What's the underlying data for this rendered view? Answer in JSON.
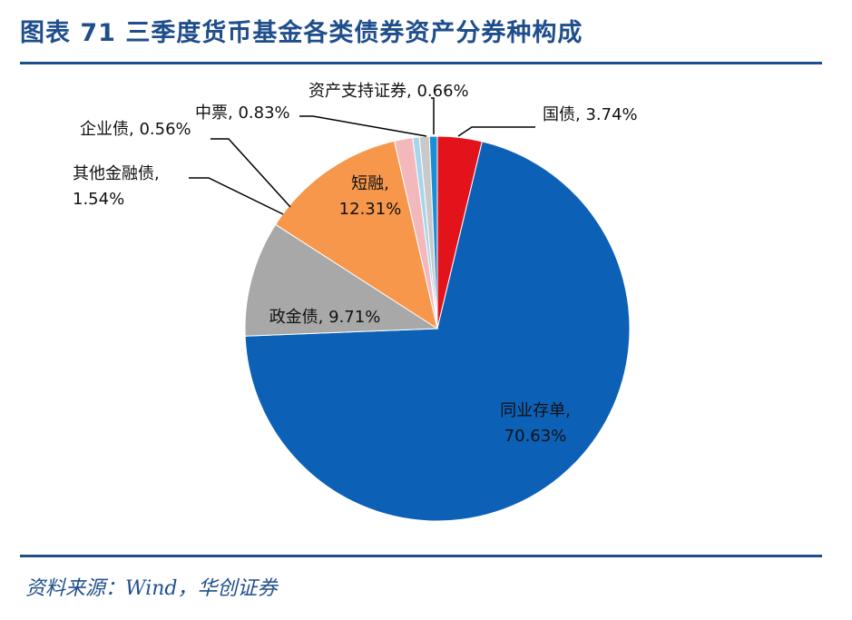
{
  "title": "图表 71  三季度货币基金各类债券资产分券种构成",
  "source": "资料来源：Wind，华创证券",
  "chart_data": {
    "type": "pie",
    "title": "图表 71  三季度货币基金各类债券资产分券种构成",
    "start": "12 o'clock, clockwise",
    "slices": [
      {
        "name": "国债",
        "value": 3.74,
        "label": "国债, 3.74%",
        "color": "#e3131b"
      },
      {
        "name": "同业存单",
        "value": 70.63,
        "label": "同业存单,\n70.63%",
        "color": "#0c61b7"
      },
      {
        "name": "政金债",
        "value": 9.71,
        "label": "政金债, 9.71%",
        "color": "#a8a8a8"
      },
      {
        "name": "短融",
        "value": 12.31,
        "label": "短融,\n12.31%",
        "color": "#f7974b"
      },
      {
        "name": "其他金融债",
        "value": 1.54,
        "label": "其他金融债,\n1.54%",
        "color": "#f2b8bc"
      },
      {
        "name": "企业债",
        "value": 0.56,
        "label": "企业债, 0.56%",
        "color": "#a7d6ec"
      },
      {
        "name": "中票",
        "value": 0.83,
        "label": "中票, 0.83%",
        "color": "#c9c9c9"
      },
      {
        "name": "资产支持证券",
        "value": 0.66,
        "label": "资产支持证券, 0.66%",
        "color": "#1a8fd8"
      }
    ]
  }
}
